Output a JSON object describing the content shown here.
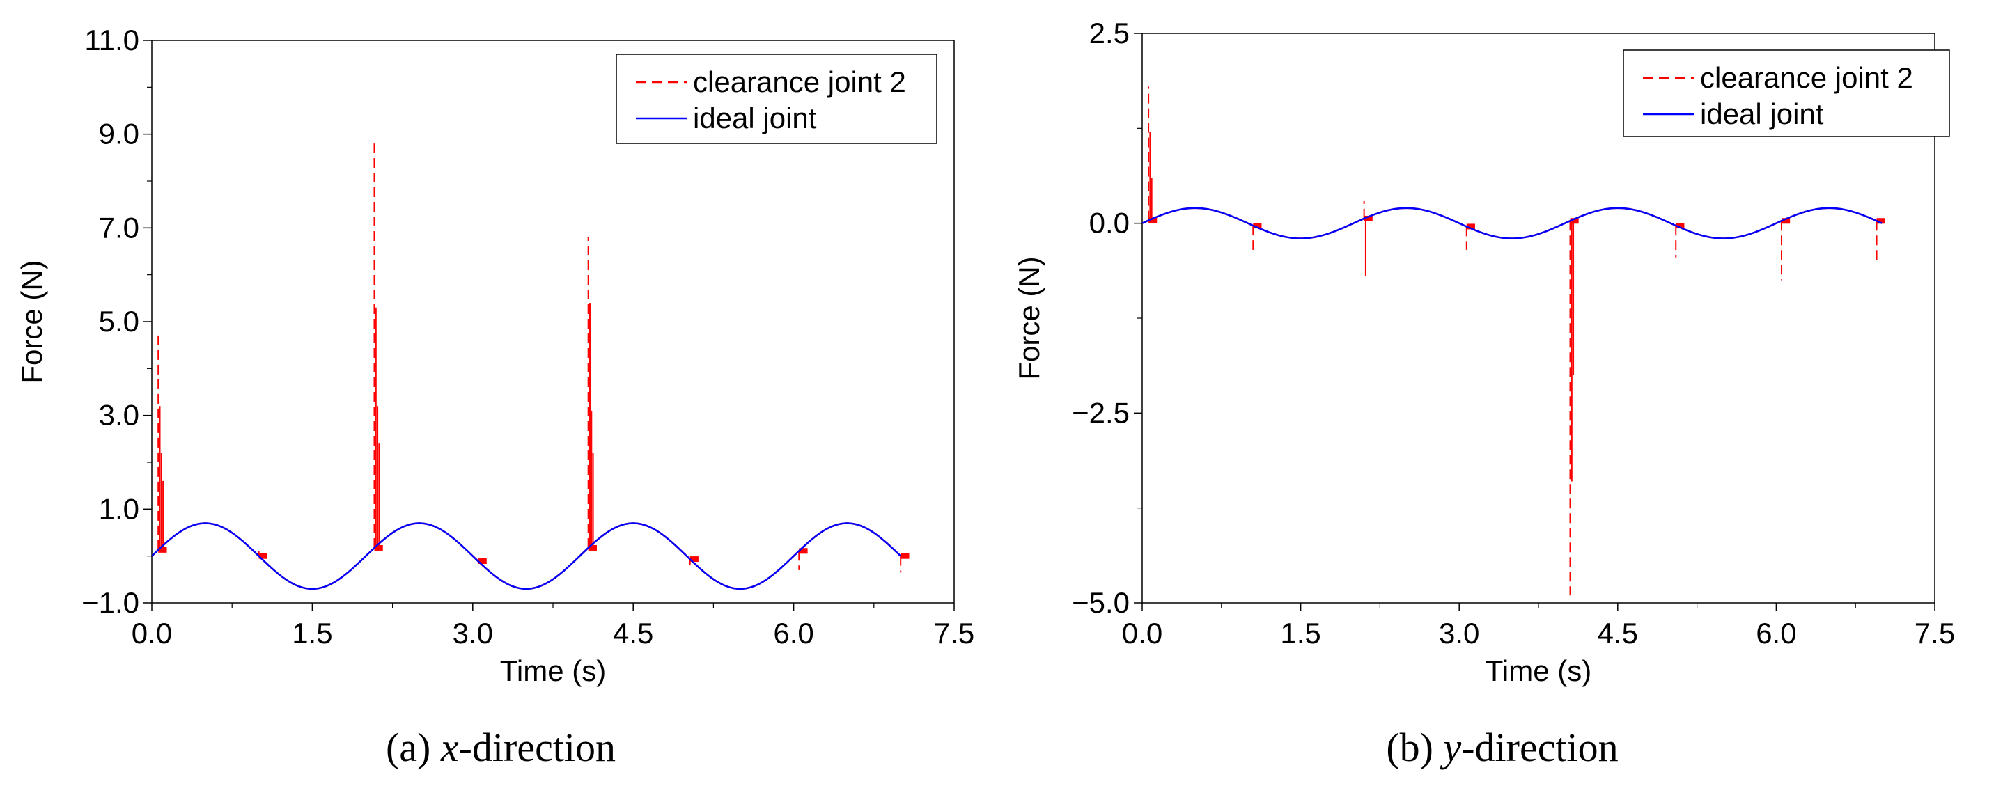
{
  "chart_data": [
    {
      "type": "line",
      "panel": "a",
      "caption_prefix": "(a) ",
      "caption_var": "x",
      "caption_suffix": "-direction",
      "xlabel": "Time (s)",
      "ylabel": "Force (N)",
      "xlim": [
        0,
        7.5
      ],
      "ylim": [
        -1,
        11
      ],
      "xticks": [
        "0.0",
        "1.5",
        "3.0",
        "4.5",
        "6.0",
        "7.5"
      ],
      "yticks": [
        "−1.0",
        "1.0",
        "3.0",
        "5.0",
        "7.0",
        "9.0",
        "11.0"
      ],
      "legend_position": "top-right",
      "series": [
        {
          "name": "clearance joint 2",
          "color": "#ff0000",
          "style": "dashed",
          "base": {
            "amplitude": 0.7,
            "period": 2.0
          },
          "spikes": [
            {
              "t": 0.06,
              "values": [
                4.8,
                3.2,
                2.2,
                1.6
              ]
            },
            {
              "t": 2.08,
              "values": [
                8.8,
                5.3,
                3.2,
                2.4
              ]
            },
            {
              "t": 4.08,
              "values": [
                6.8,
                5.4,
                3.1,
                2.2
              ]
            },
            {
              "t": 1.0,
              "values": [
                0.1
              ]
            },
            {
              "t": 3.05,
              "values": [
                -0.1
              ]
            },
            {
              "t": 5.03,
              "values": [
                -0.2
              ]
            },
            {
              "t": 6.05,
              "values": [
                -0.3
              ]
            },
            {
              "t": 7.0,
              "values": [
                -0.35
              ]
            }
          ]
        },
        {
          "name": "ideal joint",
          "color": "#0000ff",
          "style": "solid",
          "base": {
            "amplitude": 0.7,
            "period": 2.0
          }
        }
      ]
    },
    {
      "type": "line",
      "panel": "b",
      "caption_prefix": "(b) ",
      "caption_var": "y",
      "caption_suffix": "-direction",
      "xlabel": "Time (s)",
      "ylabel": "Force (N)",
      "xlim": [
        0,
        7.5
      ],
      "ylim": [
        -5,
        2.5
      ],
      "xticks": [
        "0.0",
        "1.5",
        "3.0",
        "4.5",
        "6.0",
        "7.5"
      ],
      "yticks": [
        "−5.0",
        "−2.5",
        "0.0",
        "2.5"
      ],
      "legend_position": "top-right",
      "series": [
        {
          "name": "clearance joint 2",
          "color": "#ff0000",
          "style": "dashed",
          "base": {
            "amplitude": 0.2,
            "period": 2.0
          },
          "spikes": [
            {
              "t": 0.06,
              "values": [
                1.8,
                1.2,
                0.6
              ]
            },
            {
              "t": 1.05,
              "values": [
                -0.35
              ]
            },
            {
              "t": 2.1,
              "values": [
                0.3,
                -0.7
              ]
            },
            {
              "t": 3.07,
              "values": [
                -0.35
              ]
            },
            {
              "t": 4.05,
              "values": [
                -4.9,
                -3.4,
                -2.0
              ]
            },
            {
              "t": 5.05,
              "values": [
                -0.45
              ]
            },
            {
              "t": 6.05,
              "values": [
                -0.75
              ]
            },
            {
              "t": 6.95,
              "values": [
                -0.5
              ]
            }
          ]
        },
        {
          "name": "ideal joint",
          "color": "#0000ff",
          "style": "solid",
          "base": {
            "amplitude": 0.2,
            "period": 2.0
          }
        }
      ]
    }
  ]
}
